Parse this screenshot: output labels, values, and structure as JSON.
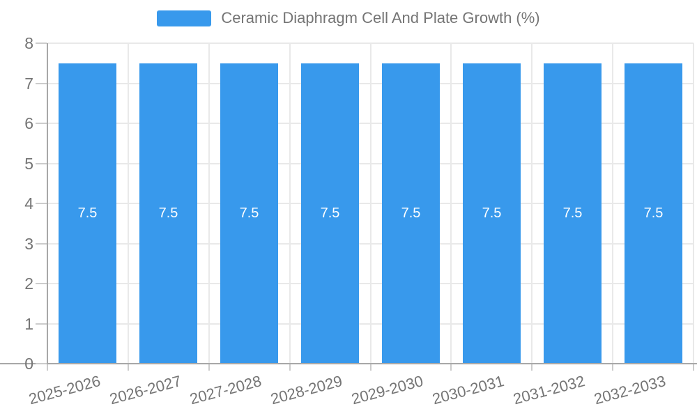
{
  "chart_data": {
    "type": "bar",
    "title": "Ceramic Diaphragm Cell And Plate Growth (%)",
    "categories": [
      "2025-2026",
      "2026-2027",
      "2027-2028",
      "2028-2029",
      "2029-2030",
      "2030-2031",
      "2031-2032",
      "2032-2033"
    ],
    "values": [
      7.5,
      7.5,
      7.5,
      7.5,
      7.5,
      7.5,
      7.5,
      7.5
    ],
    "value_labels": [
      "7.5",
      "7.5",
      "7.5",
      "7.5",
      "7.5",
      "7.5",
      "7.5",
      "7.5"
    ],
    "xlabel": "",
    "ylabel": "",
    "ylim": [
      0,
      8
    ],
    "yticks": [
      0,
      1,
      2,
      3,
      4,
      5,
      6,
      7,
      8
    ],
    "grid": true,
    "legend_position": "top-center",
    "colors": {
      "bar": "#3899ec",
      "legend_swatch": "#3899ec",
      "text": "#757575",
      "value_label": "#ffffff",
      "gridline": "#e9e9e9",
      "axis_line": "#a8a8a8",
      "tick": "#cccccc"
    }
  }
}
